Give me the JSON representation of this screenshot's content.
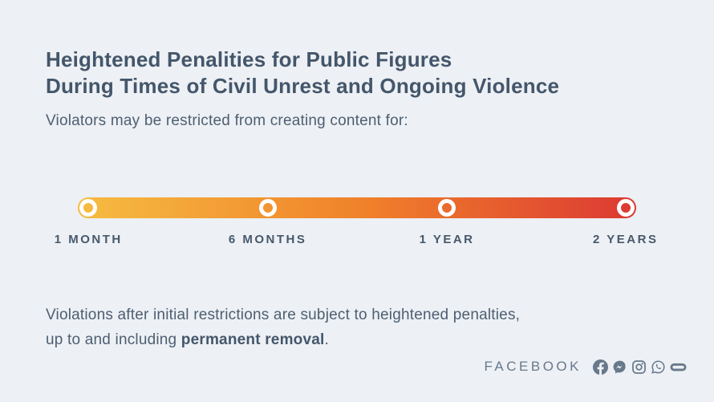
{
  "page": {
    "bg_color": "#edf0f4",
    "title_color": "#44566b",
    "body_text_color": "#4d5f72"
  },
  "header": {
    "title_line1": "Heightened Penalities for Public Figures",
    "title_line2": "During Times of Civil Unrest and Ongoing Violence",
    "subtitle": "Violators may be restricted from creating content for:"
  },
  "timeline": {
    "type": "gradient-severity-scale",
    "gradient": {
      "start": "#f6bc41",
      "mid": "#f0802a",
      "end": "#dc3933"
    },
    "stops": [
      {
        "label": "1 MONTH",
        "pos_pct": 1.9
      },
      {
        "label": "6 MONTHS",
        "pos_pct": 34.0
      },
      {
        "label": "1 YEAR",
        "pos_pct": 66.1
      },
      {
        "label": "2 YEARS",
        "pos_pct": 98.1
      }
    ],
    "label_color": "#46586b",
    "marker_ring_color": "#ffffff"
  },
  "note": {
    "line1": "Violations after initial restrictions are subject to heightened penalties,",
    "line2_prefix": "up to and including ",
    "line2_bold": "permanent removal",
    "line2_suffix": "."
  },
  "footer": {
    "wordmark": "FACEBOOK",
    "icon_color": "#68798c",
    "icons": [
      "facebook-icon",
      "messenger-icon",
      "instagram-icon",
      "whatsapp-icon",
      "oculus-icon"
    ]
  }
}
